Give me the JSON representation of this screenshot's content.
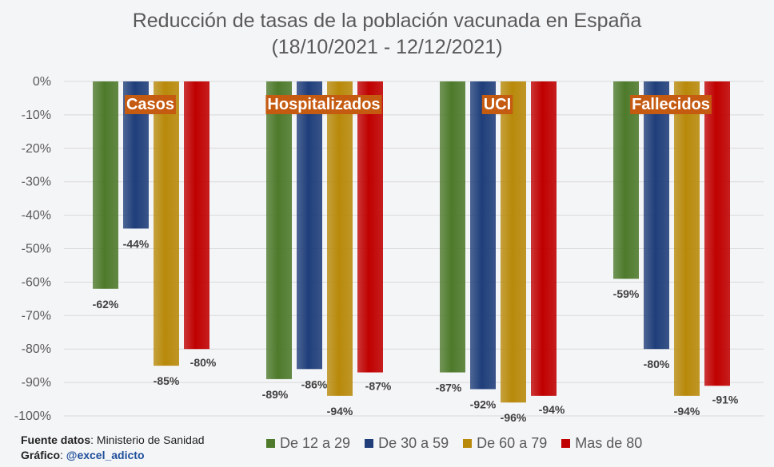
{
  "title": {
    "line1": "Reducción de tasas de la población vacunada en España",
    "line2": "(18/10/2021 - 12/12/2021)"
  },
  "footer": {
    "source_label": "Fuente datos",
    "source_value": ": Ministerio de Sanidad",
    "chart_label": "Gráfico",
    "chart_sep": ": ",
    "chart_value": "@excel_adicto"
  },
  "colors": {
    "De 12 a 29": "#4e7a2b",
    "De 30 a 59": "#1f3e7a",
    "De 60 a 79": "#b8890a",
    "Mas de 80": "#c00000",
    "category_box": "#c55a11",
    "grid": "#d9d9d9"
  },
  "chart_data": {
    "type": "bar",
    "title": "Reducción de tasas de la población vacunada en España (18/10/2021 - 12/12/2021)",
    "categories": [
      "Casos",
      "Hospitalizados",
      "UCI",
      "Fallecidos"
    ],
    "series": [
      {
        "name": "De 12 a 29",
        "values": [
          -62,
          -89,
          -87,
          -59
        ]
      },
      {
        "name": "De 30 a 59",
        "values": [
          -44,
          -86,
          -92,
          -80
        ]
      },
      {
        "name": "De 60 a 79",
        "values": [
          -85,
          -94,
          -96,
          -94
        ]
      },
      {
        "name": "Mas de 80",
        "values": [
          -80,
          -87,
          -94,
          -91
        ]
      }
    ],
    "ylim": [
      -100,
      0
    ],
    "yticks": [
      "0%",
      "-10%",
      "-20%",
      "-30%",
      "-40%",
      "-50%",
      "-60%",
      "-70%",
      "-80%",
      "-90%",
      "-100%"
    ],
    "value_labels": [
      [
        "-62%",
        "-89%",
        "-87%",
        "-59%"
      ],
      [
        "-44%",
        "-86%",
        "-92%",
        "-80%"
      ],
      [
        "-85%",
        "-94%",
        "-96%",
        "-94%"
      ],
      [
        "-80%",
        "-87%",
        "-94%",
        "-91%"
      ]
    ],
    "xlabel": "",
    "ylabel": "",
    "legend": "bottom",
    "grid": true
  }
}
